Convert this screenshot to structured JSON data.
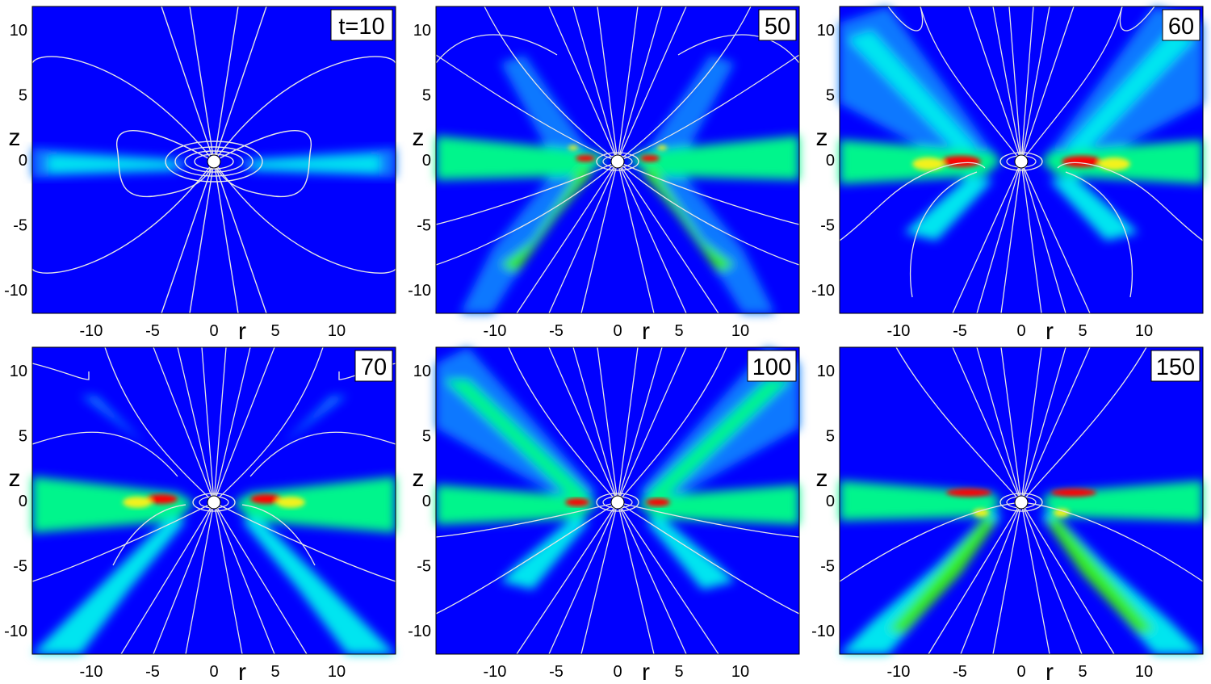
{
  "panels": [
    {
      "time_label": "t=10"
    },
    {
      "time_label": "50"
    },
    {
      "time_label": "60"
    },
    {
      "time_label": "70"
    },
    {
      "time_label": "100"
    },
    {
      "time_label": "150"
    }
  ],
  "axes": {
    "x_label": "r",
    "y_label": "z",
    "x_ticks": [
      "-10",
      "-5",
      "0",
      "5",
      "10"
    ],
    "y_ticks": [
      "10",
      "5",
      "0",
      "-5",
      "-10"
    ],
    "x_range": [
      -14.8,
      14.8
    ],
    "y_range": [
      -11.8,
      11.8
    ]
  },
  "colors": {
    "background": "#0000ff",
    "field_lines": "#e6e6e6",
    "colormap": [
      "#0000ff",
      "#0a78ff",
      "#00e5f0",
      "#00f58c",
      "#39ee1a",
      "#f2f21a",
      "#ff0000"
    ]
  }
}
